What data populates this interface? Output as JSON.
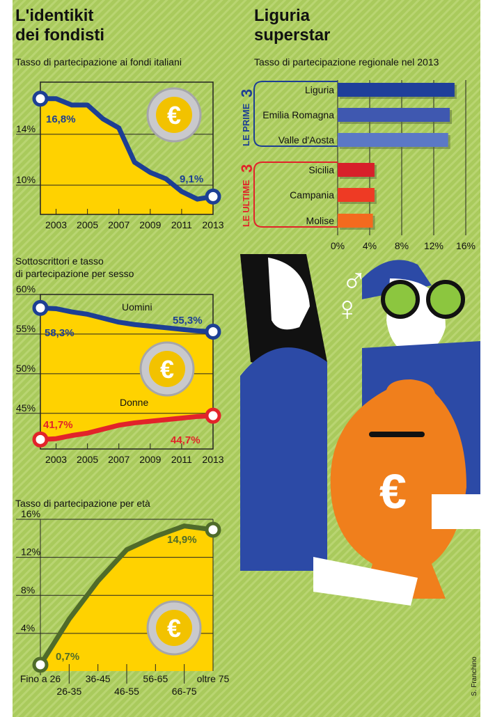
{
  "left_title": [
    "L'identikit",
    "dei fondisti"
  ],
  "right_title": [
    "Liguria",
    "superstar"
  ],
  "credit": "S. Franchino",
  "colors": {
    "bg": "#a8c95a",
    "fill": "#ffd200",
    "blue": "#1d3f94",
    "red": "#e2232a",
    "green": "#4f6b2a"
  },
  "chart_data": [
    {
      "type": "area",
      "title": "Tasso di partecipazione ai fondi italiani",
      "x": [
        2002,
        2003,
        2004,
        2005,
        2006,
        2007,
        2008,
        2009,
        2010,
        2011,
        2012,
        2013
      ],
      "x_tick_labels": [
        "2003",
        "2005",
        "2007",
        "2009",
        "2011",
        "2013"
      ],
      "y_tick_labels": [
        "14%",
        "10%"
      ],
      "ylim": [
        7.7,
        18.1
      ],
      "series": [
        {
          "name": "Tasso",
          "values": [
            16.8,
            16.8,
            16.3,
            16.3,
            15.2,
            14.5,
            11.8,
            11.0,
            10.5,
            9.5,
            8.9,
            9.1
          ]
        }
      ],
      "annotations": [
        "16,8%",
        "9,1%"
      ]
    },
    {
      "type": "line",
      "title": "Sottoscrittori e tasso di partecipazione per sesso",
      "x": [
        2002,
        2003,
        2004,
        2005,
        2006,
        2007,
        2008,
        2009,
        2010,
        2011,
        2012,
        2013
      ],
      "x_tick_labels": [
        "2003",
        "2005",
        "2007",
        "2009",
        "2011",
        "2013"
      ],
      "y_tick_labels": [
        "60%",
        "55%",
        "50%",
        "45%"
      ],
      "ylim": [
        40.5,
        60
      ],
      "series": [
        {
          "name": "Uomini",
          "values": [
            58.3,
            58.2,
            57.8,
            57.5,
            57.0,
            56.5,
            56.2,
            56.0,
            55.8,
            55.6,
            55.4,
            55.3
          ]
        },
        {
          "name": "Donne",
          "values": [
            41.7,
            41.8,
            42.2,
            42.5,
            43.0,
            43.5,
            43.8,
            44.0,
            44.2,
            44.4,
            44.6,
            44.7
          ]
        }
      ],
      "annotations": [
        "58,3%",
        "55,3%",
        "41,7%",
        "44,7%"
      ]
    },
    {
      "type": "area",
      "title": "Tasso di partecipazione per età",
      "categories": [
        "Fino a 26",
        "26-35",
        "36-45",
        "46-55",
        "56-65",
        "66-75",
        "oltre 75"
      ],
      "y_tick_labels": [
        "16%",
        "12%",
        "8%",
        "4%"
      ],
      "ylim": [
        -0.4,
        16
      ],
      "series": [
        {
          "name": "Tasso",
          "values": [
            0.7,
            5.5,
            9.5,
            12.8,
            14.2,
            15.3,
            14.9
          ]
        }
      ],
      "annotations": [
        "0,7%",
        "14,9%"
      ]
    },
    {
      "type": "bar",
      "title": "Tasso di partecipazione regionale nel 2013",
      "categories": [
        "Liguria",
        "Emilia Romagna",
        "Valle d'Aosta",
        "Sicilia",
        "Campania",
        "Molise"
      ],
      "values": [
        14.6,
        14.0,
        13.8,
        4.6,
        4.6,
        4.4
      ],
      "bar_colors": [
        "#1f3f9a",
        "#3f58b0",
        "#5b78c6",
        "#d7202a",
        "#ee3a24",
        "#f46a1e"
      ],
      "groups": [
        {
          "label": "LE PRIME",
          "number": "3"
        },
        {
          "label": "LE ULTIME",
          "number": "3"
        }
      ],
      "x_tick_labels": [
        "0%",
        "4%",
        "8%",
        "12%",
        "16%"
      ],
      "xlim": [
        0,
        16
      ]
    }
  ]
}
